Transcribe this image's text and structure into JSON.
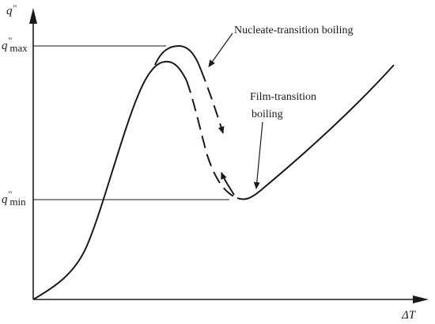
{
  "axes": {
    "y_symbol": "q",
    "y_prime": "\"",
    "x_symbol": "ΔT"
  },
  "markers": {
    "max": {
      "symbol": "q",
      "prime": "\"",
      "subscript": "max"
    },
    "min": {
      "symbol": "q",
      "prime": "\"",
      "subscript": "min"
    }
  },
  "annotations": {
    "nucleate": "Nucleate-transition boiling",
    "film_line1": "Film-transition",
    "film_line2": "boiling"
  },
  "colors": {
    "ink": "#1a1a1a",
    "background": "#ffffff"
  }
}
